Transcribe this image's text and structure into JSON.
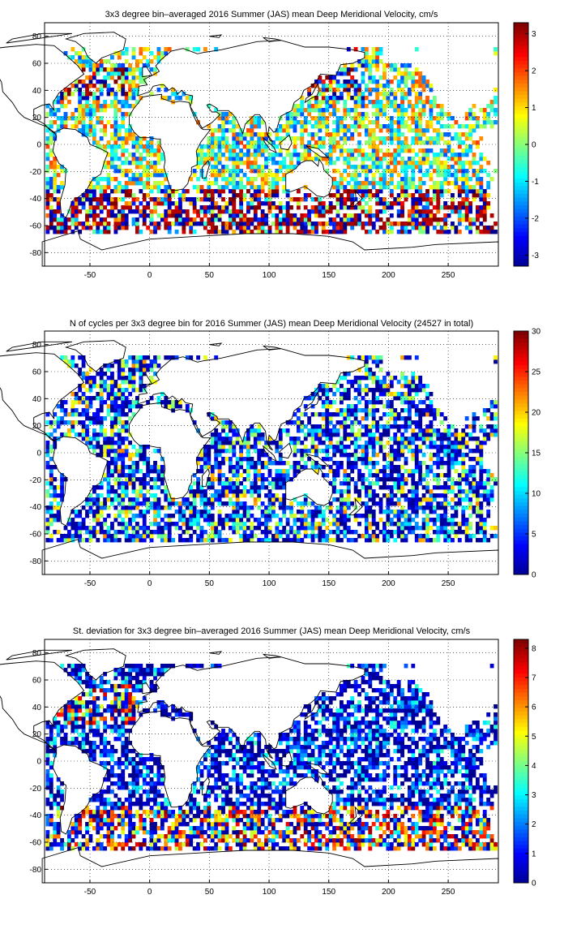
{
  "colormap": {
    "name": "jet",
    "stops": [
      "#00008f",
      "#0000ff",
      "#00ffff",
      "#ffff00",
      "#ff0000",
      "#800000"
    ]
  },
  "chart_data": [
    {
      "type": "heatmap",
      "title": "3x3 degree bin–averaged 2016 Summer (JAS) mean Deep Meridional Velocity, cm/s",
      "xlabel": "",
      "ylabel": "",
      "xlim": [
        -88,
        292
      ],
      "ylim": [
        -90,
        90
      ],
      "xticks": [
        "-50",
        "0",
        "50",
        "100",
        "150",
        "200",
        "250"
      ],
      "yticks": [
        "80",
        "60",
        "40",
        "20",
        "0",
        "-20",
        "-40",
        "-60",
        "-80"
      ],
      "grid": true,
      "bin_size_deg": 3,
      "colorbar_range": [
        -3.3,
        3.3
      ],
      "colorbar_ticks": [
        "3",
        "2",
        "1",
        "0",
        "-1",
        "-2",
        "-3"
      ],
      "field": "meridional velocity (diverging)"
    },
    {
      "type": "heatmap",
      "title": "N of cycles per 3x3 degree bin for 2016 Summer (JAS) mean Deep Meridional Velocity (24527 in total)",
      "xlabel": "",
      "ylabel": "",
      "xlim": [
        -88,
        292
      ],
      "ylim": [
        -90,
        90
      ],
      "xticks": [
        "-50",
        "0",
        "50",
        "100",
        "150",
        "200",
        "250"
      ],
      "yticks": [
        "80",
        "60",
        "40",
        "20",
        "0",
        "-20",
        "-40",
        "-60",
        "-80"
      ],
      "grid": true,
      "bin_size_deg": 3,
      "colorbar_range": [
        0,
        30
      ],
      "colorbar_ticks": [
        "30",
        "25",
        "20",
        "15",
        "10",
        "5",
        "0"
      ],
      "field": "cycle count (mostly low)"
    },
    {
      "type": "heatmap",
      "title": "St. deviation for 3x3 degree bin–averaged 2016 Summer (JAS) mean Deep Meridional Velocity, cm/s",
      "xlabel": "",
      "ylabel": "",
      "xlim": [
        -88,
        292
      ],
      "ylim": [
        -90,
        90
      ],
      "xticks": [
        "-50",
        "0",
        "50",
        "100",
        "150",
        "200",
        "250"
      ],
      "yticks": [
        "80",
        "60",
        "40",
        "20",
        "0",
        "-20",
        "-40",
        "-60",
        "-80"
      ],
      "grid": true,
      "bin_size_deg": 3,
      "colorbar_range": [
        0,
        8.3
      ],
      "colorbar_ticks": [
        "8",
        "7",
        "6",
        "5",
        "4",
        "3",
        "2",
        "1",
        "0"
      ],
      "field": "standard deviation (mostly low, high in southern ocean)"
    }
  ]
}
